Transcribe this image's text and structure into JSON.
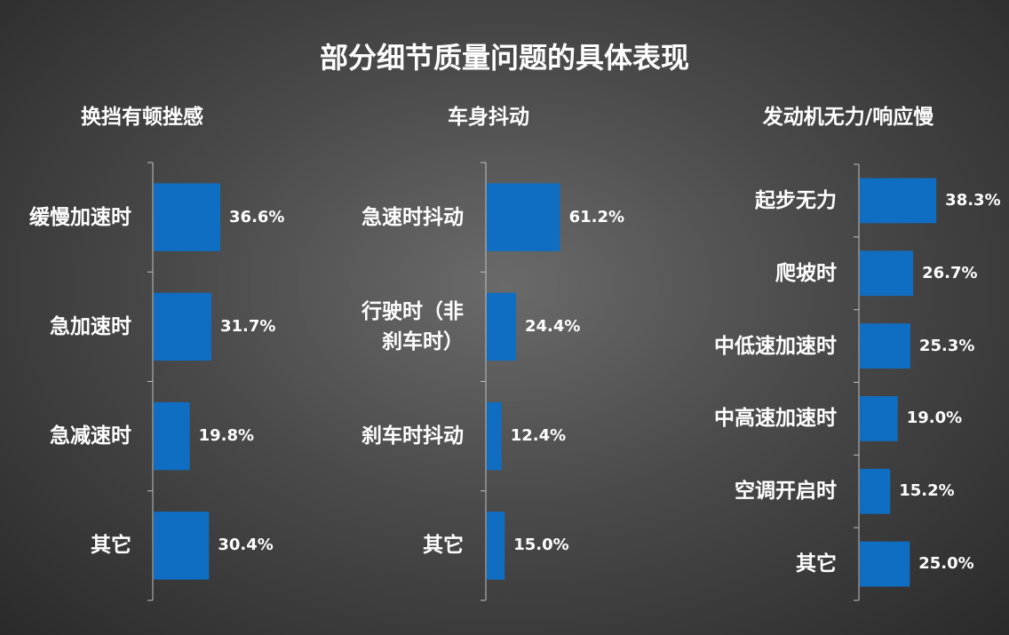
{
  "title": "部分细节质量问题的具体表现",
  "colors": {
    "bar": "#0f6ec2",
    "axis": "#bfbfbf",
    "text": "#ffffff"
  },
  "chart_data": [
    {
      "type": "bar",
      "orientation": "horizontal",
      "title": "换挡有顿挫感",
      "categories": [
        "缓慢加速时",
        "急加速时",
        "急减速时",
        "其它"
      ],
      "values": [
        36.6,
        31.7,
        19.8,
        30.4
      ],
      "value_labels": [
        "36.6%",
        "31.7%",
        "19.8%",
        "30.4%"
      ],
      "category_lines": [
        [
          "缓慢加速时"
        ],
        [
          "急加速时"
        ],
        [
          "急减速时"
        ],
        [
          "其它"
        ]
      ],
      "grid": false
    },
    {
      "type": "bar",
      "orientation": "horizontal",
      "title": "车身抖动",
      "categories": [
        "急速时抖动",
        "行驶时（非刹车时）",
        "刹车时抖动",
        "其它"
      ],
      "values": [
        61.2,
        24.4,
        12.4,
        15.0
      ],
      "value_labels": [
        "61.2%",
        "24.4%",
        "12.4%",
        "15.0%"
      ],
      "category_lines": [
        [
          "急速时抖动"
        ],
        [
          "行驶时（非",
          "刹车时）"
        ],
        [
          "刹车时抖动"
        ],
        [
          "其它"
        ]
      ],
      "grid": false
    },
    {
      "type": "bar",
      "orientation": "horizontal",
      "title": "发动机无力/响应慢",
      "categories": [
        "起步无力",
        "爬坡时",
        "中低速加速时",
        "中高速加速时",
        "空调开启时",
        "其它"
      ],
      "values": [
        38.3,
        26.7,
        25.3,
        19.0,
        15.2,
        25.0
      ],
      "value_labels": [
        "38.3%",
        "26.7%",
        "25.3%",
        "19.0%",
        "15.2%",
        "25.0%"
      ],
      "category_lines": [
        [
          "起步无力"
        ],
        [
          "爬坡时"
        ],
        [
          "中低速加速时"
        ],
        [
          "中高速加速时"
        ],
        [
          "空调开启时"
        ],
        [
          "其它"
        ]
      ],
      "grid": false
    }
  ]
}
